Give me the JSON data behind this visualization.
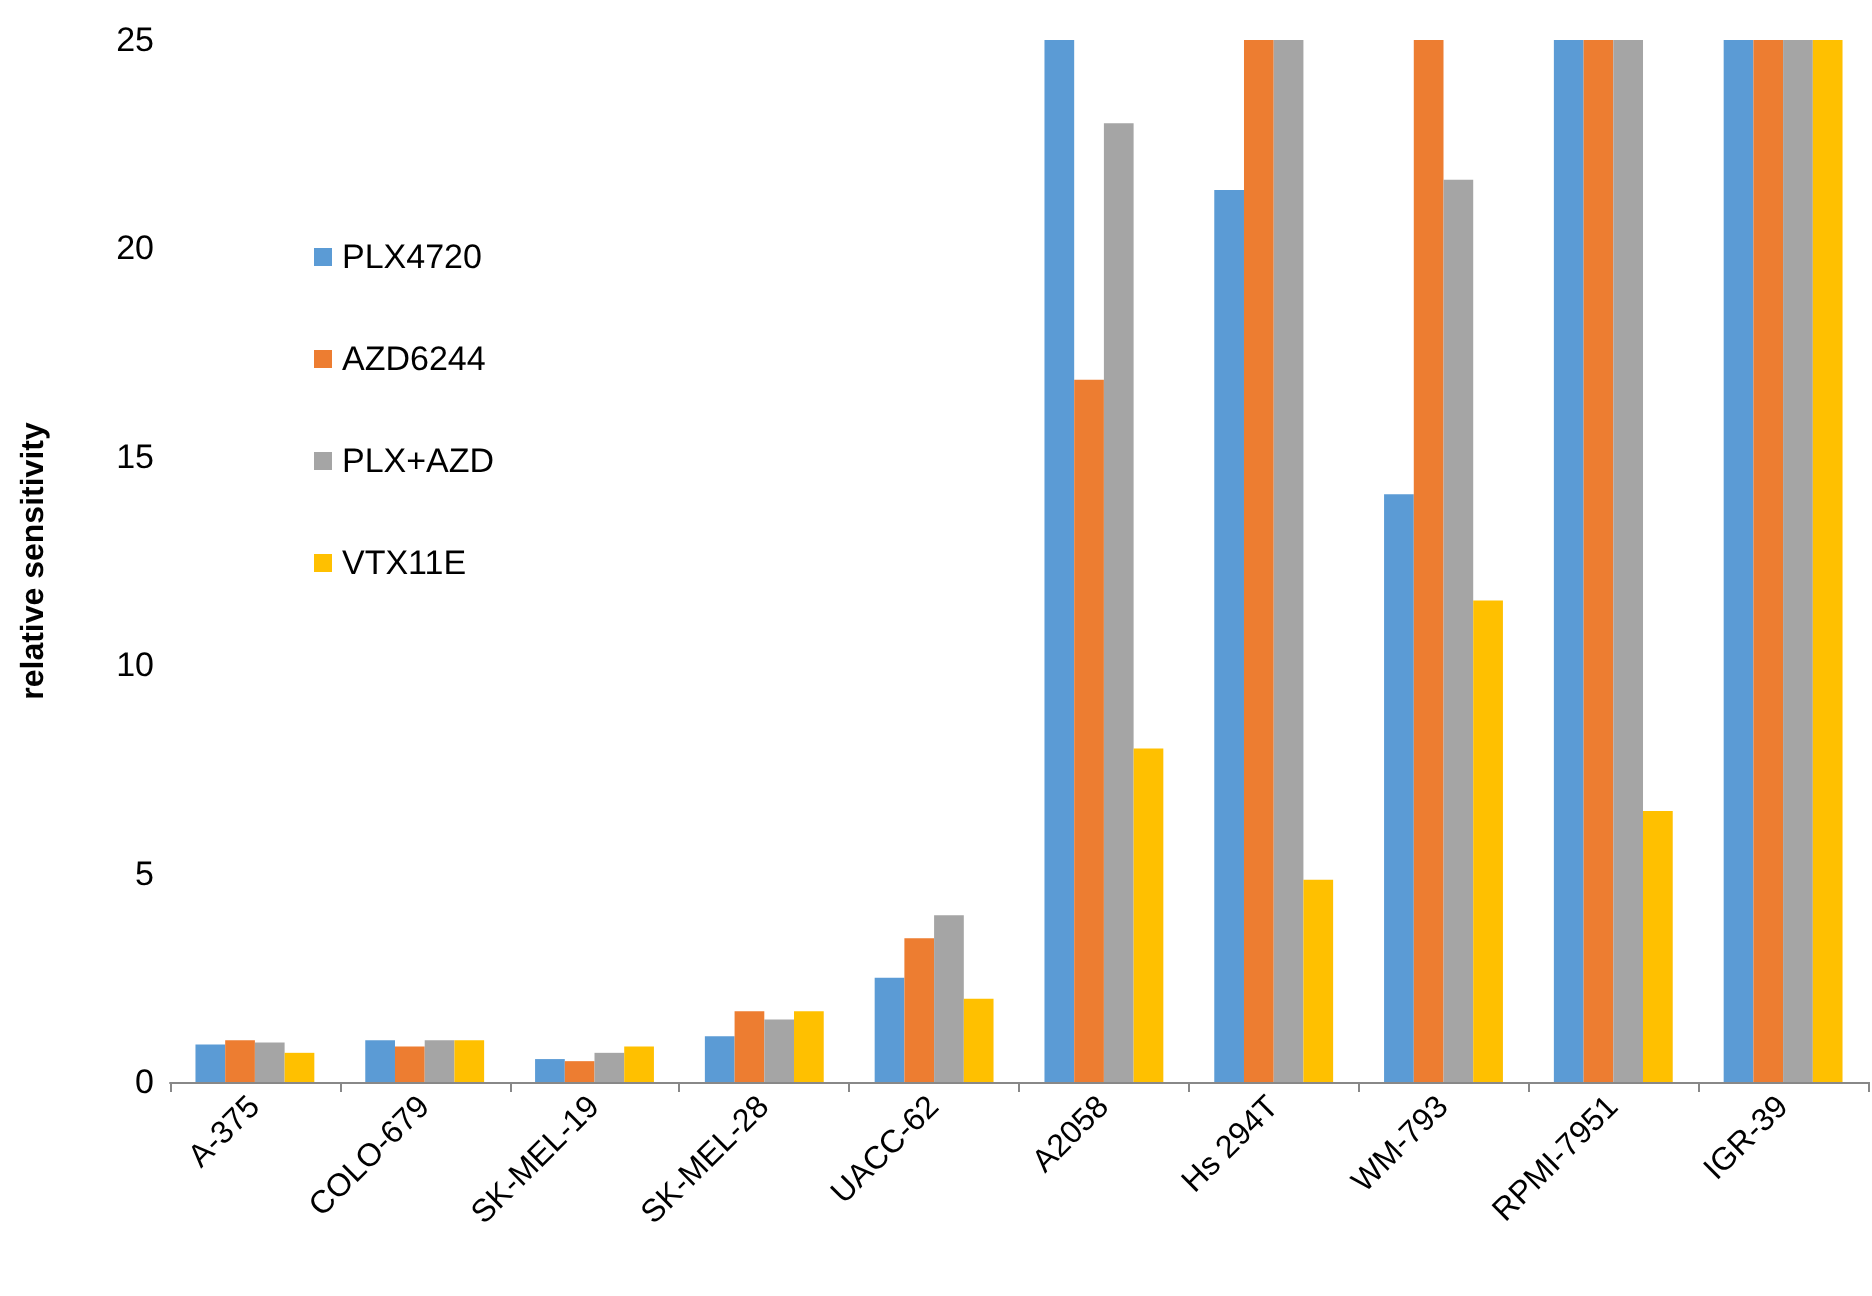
{
  "chart_data": {
    "type": "bar",
    "ylabel": "relative sensitivity",
    "categories": [
      "A-375",
      "COLO-679",
      "SK-MEL-19",
      "SK-MEL-28",
      "UACC-62",
      "A2058",
      "Hs 294T",
      "WM-793",
      "RPMI-7951",
      "IGR-39"
    ],
    "series": [
      {
        "name": "PLX4720",
        "color": "#5b9bd5",
        "values": [
          0.9,
          1.0,
          0.55,
          1.1,
          2.5,
          25,
          21.4,
          14.1,
          25,
          25
        ]
      },
      {
        "name": "AZD6244",
        "color": "#ed7d31",
        "values": [
          1.0,
          0.85,
          0.5,
          1.7,
          3.45,
          16.85,
          25,
          25,
          25,
          25
        ]
      },
      {
        "name": "PLX+AZD",
        "color": "#a5a5a5",
        "values": [
          0.95,
          1.0,
          0.7,
          1.5,
          4.0,
          23.0,
          25,
          21.65,
          25,
          25
        ]
      },
      {
        "name": "VTX11E",
        "color": "#ffc000",
        "values": [
          0.7,
          1.0,
          0.85,
          1.7,
          2.0,
          8.0,
          4.85,
          11.55,
          6.5,
          25
        ]
      }
    ],
    "ylim": [
      0,
      25
    ],
    "yticks": [
      0,
      5,
      10,
      15,
      20,
      25
    ],
    "grid": false,
    "legend": "top left"
  }
}
